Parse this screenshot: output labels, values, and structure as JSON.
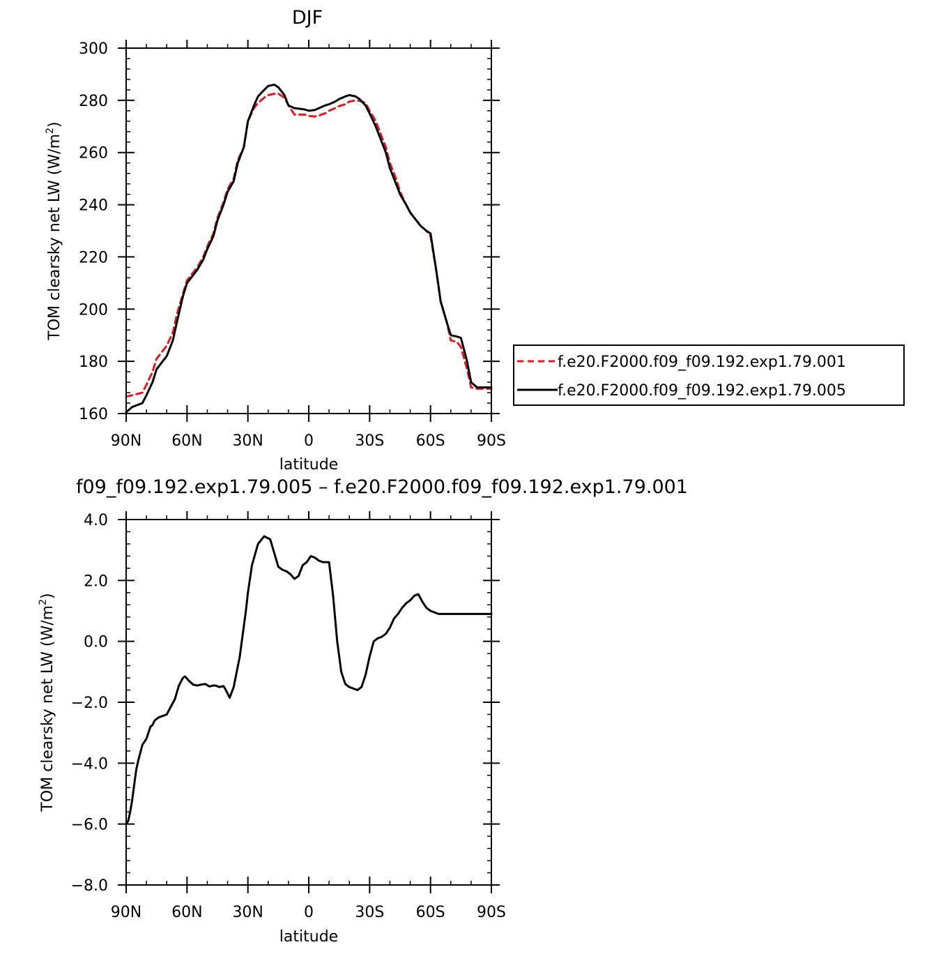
{
  "chart_data": [
    {
      "type": "line",
      "title": "DJF",
      "xlabel": "latitude",
      "ylabel_main": "TOM clearsky net LW (W/m",
      "ylabel_sup": "2",
      "ylabel_end": ")",
      "xlim": [
        -90,
        90
      ],
      "ylim": [
        160,
        300
      ],
      "xticks": [
        {
          "value": -90,
          "label": "90N"
        },
        {
          "value": -60,
          "label": "60N"
        },
        {
          "value": -30,
          "label": "30N"
        },
        {
          "value": 0,
          "label": "0"
        },
        {
          "value": 30,
          "label": "30S"
        },
        {
          "value": 60,
          "label": "60S"
        },
        {
          "value": 90,
          "label": "90S"
        }
      ],
      "yticks": [
        {
          "value": 160,
          "label": "160"
        },
        {
          "value": 180,
          "label": "180"
        },
        {
          "value": 200,
          "label": "200"
        },
        {
          "value": 220,
          "label": "220"
        },
        {
          "value": 240,
          "label": "240"
        },
        {
          "value": 260,
          "label": "260"
        },
        {
          "value": 280,
          "label": "280"
        },
        {
          "value": 300,
          "label": "300"
        }
      ],
      "legend_position": "right",
      "series": [
        {
          "name": "f.e20.F2000.f09_f09.192.exp1.79.001",
          "color": "#e8141e",
          "dash": "dashed",
          "x": [
            -90,
            -87,
            -82,
            -80,
            -77,
            -75,
            -72,
            -70,
            -67,
            -65,
            -62,
            -60,
            -57,
            -55,
            -52,
            -50,
            -47,
            -45,
            -42,
            -40,
            -37,
            -35,
            -32,
            -30,
            -27,
            -25,
            -22,
            -20,
            -17,
            -15,
            -12,
            -10,
            -7,
            -5,
            -2,
            0,
            3,
            5,
            8,
            10,
            13,
            15,
            18,
            20,
            23,
            25,
            28,
            30,
            33,
            35,
            38,
            40,
            43,
            45,
            48,
            50,
            53,
            55,
            58,
            60,
            63,
            65,
            68,
            70,
            73,
            75,
            78,
            80,
            83,
            85,
            88,
            90
          ],
          "y": [
            166.5,
            167,
            168,
            171,
            176,
            181,
            184,
            186,
            191,
            198,
            206,
            211,
            214,
            216,
            220,
            224,
            229,
            235,
            241,
            246,
            250,
            257,
            262,
            272,
            277,
            279,
            281,
            282,
            282.5,
            282.5,
            281,
            278,
            274.5,
            274.5,
            274.5,
            274,
            273.8,
            274.2,
            275,
            276,
            277,
            277.8,
            278.5,
            279.5,
            280,
            279.8,
            279,
            276,
            272,
            268,
            262,
            256,
            250,
            245,
            240,
            237,
            234,
            232,
            230,
            228,
            214,
            203,
            195,
            188,
            187.5,
            185.5,
            177,
            170,
            169.5,
            169.5,
            169.5,
            169.5
          ]
        },
        {
          "name": "f.e20.F2000.f09_f09.192.exp1.79.005",
          "color": "#000000",
          "dash": "solid",
          "x": [
            -90,
            -87,
            -82,
            -80,
            -77,
            -75,
            -72,
            -70,
            -67,
            -65,
            -62,
            -60,
            -57,
            -55,
            -52,
            -50,
            -47,
            -45,
            -42,
            -40,
            -37,
            -35,
            -32,
            -30,
            -27,
            -25,
            -22,
            -20,
            -17,
            -15,
            -12,
            -10,
            -7,
            -5,
            -2,
            0,
            3,
            5,
            8,
            10,
            13,
            15,
            18,
            20,
            23,
            25,
            28,
            30,
            33,
            35,
            38,
            40,
            43,
            45,
            48,
            50,
            53,
            55,
            58,
            60,
            63,
            65,
            68,
            70,
            73,
            75,
            78,
            80,
            83,
            85,
            88,
            90
          ],
          "y": [
            160.5,
            162.5,
            164,
            167,
            172,
            177,
            180,
            182,
            188,
            195,
            205,
            210,
            213,
            215,
            219,
            223,
            228,
            234,
            240,
            245,
            249,
            256,
            262,
            272,
            278,
            281.5,
            284,
            285.5,
            286,
            285,
            282,
            278,
            277,
            276.8,
            276.5,
            276,
            276.3,
            277,
            278,
            278.5,
            279.5,
            280.5,
            281.5,
            282,
            281.5,
            280.5,
            278,
            275,
            270,
            266,
            260,
            254,
            248,
            244,
            240,
            237,
            234,
            232,
            230,
            229,
            214,
            203,
            195,
            190,
            189.5,
            189,
            180,
            172,
            170,
            170,
            170,
            170
          ]
        }
      ]
    },
    {
      "type": "line",
      "title": "f09_f09.192.exp1.79.005 – f.e20.F2000.f09_f09.192.exp1.79.001",
      "xlabel": "latitude",
      "ylabel_main": "TOM clearsky net LW (W/m",
      "ylabel_sup": "2",
      "ylabel_end": ")",
      "xlim": [
        -90,
        90
      ],
      "ylim": [
        -8,
        4
      ],
      "xticks": [
        {
          "value": -90,
          "label": "90N"
        },
        {
          "value": -60,
          "label": "60N"
        },
        {
          "value": -30,
          "label": "30N"
        },
        {
          "value": 0,
          "label": "0"
        },
        {
          "value": 30,
          "label": "30S"
        },
        {
          "value": 60,
          "label": "60S"
        },
        {
          "value": 90,
          "label": "90S"
        }
      ],
      "yticks": [
        {
          "value": -8,
          "label": "−8.0"
        },
        {
          "value": -6,
          "label": "−6.0"
        },
        {
          "value": -4,
          "label": "−4.0"
        },
        {
          "value": -2,
          "label": "−2.0"
        },
        {
          "value": 0,
          "label": "0.0"
        },
        {
          "value": 2,
          "label": "2.0"
        },
        {
          "value": 4,
          "label": "4.0"
        }
      ],
      "series": [
        {
          "color": "#000000",
          "dash": "solid",
          "x": [
            -90,
            -89,
            -88,
            -87,
            -86,
            -85,
            -84,
            -82,
            -80,
            -78,
            -77,
            -76,
            -74,
            -72,
            -70,
            -68,
            -66,
            -64,
            -62,
            -61,
            -59,
            -57,
            -55,
            -53,
            -51,
            -49,
            -47,
            -46,
            -44,
            -42,
            -41,
            -39,
            -37,
            -34,
            -33,
            -31,
            -30,
            -28,
            -25,
            -22,
            -19,
            -17,
            -15,
            -13,
            -11,
            -9,
            -7,
            -5,
            -3,
            -1,
            0,
            1,
            3,
            5,
            7,
            9,
            10,
            12,
            14,
            16,
            18,
            20,
            22,
            24,
            26,
            28,
            30,
            32,
            34,
            36,
            38,
            40,
            42,
            44,
            46,
            48,
            50,
            52,
            54,
            56,
            58,
            60,
            62,
            64,
            66,
            68,
            70,
            72,
            74,
            76,
            78,
            79,
            80,
            81,
            82,
            83,
            84,
            85,
            86,
            87,
            88,
            89,
            90
          ],
          "y": [
            -6.0,
            -5.9,
            -5.6,
            -5.2,
            -4.7,
            -4.2,
            -3.9,
            -3.4,
            -3.2,
            -2.8,
            -2.75,
            -2.6,
            -2.5,
            -2.45,
            -2.4,
            -2.15,
            -1.9,
            -1.45,
            -1.2,
            -1.15,
            -1.3,
            -1.42,
            -1.45,
            -1.42,
            -1.4,
            -1.48,
            -1.45,
            -1.45,
            -1.5,
            -1.47,
            -1.58,
            -1.85,
            -1.5,
            -0.5,
            0.0,
            1.0,
            1.6,
            2.5,
            3.2,
            3.45,
            3.35,
            2.9,
            2.45,
            2.35,
            2.3,
            2.2,
            2.05,
            2.15,
            2.5,
            2.6,
            2.7,
            2.8,
            2.75,
            2.65,
            2.6,
            2.6,
            2.6,
            1.5,
            0.0,
            -1.0,
            -1.4,
            -1.5,
            -1.55,
            -1.6,
            -1.5,
            -1.1,
            -0.5,
            0.0,
            0.1,
            0.15,
            0.25,
            0.45,
            0.75,
            0.9,
            1.1,
            1.25,
            1.35,
            1.5,
            1.55,
            1.3,
            1.1,
            1.0,
            0.95,
            0.9,
            0.9,
            0.9,
            0.9,
            0.9,
            0.9,
            0.9,
            0.9,
            0.9,
            0.9,
            0.9,
            0.9,
            0.9,
            0.9,
            0.9,
            0.9,
            0.9,
            0.9,
            0.9,
            0.9
          ]
        }
      ]
    }
  ]
}
